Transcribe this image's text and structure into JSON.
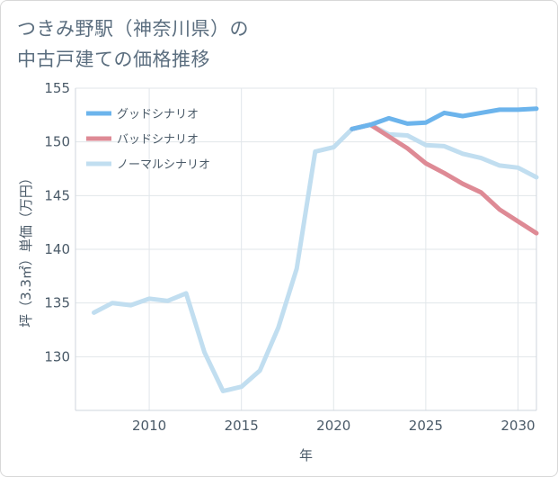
{
  "title_lines": [
    "つきみ野駅（神奈川県）の",
    "中古戸建ての価格推移"
  ],
  "chart_data": {
    "type": "line",
    "xlabel": "年",
    "ylabel": "坪（3.3㎡）単価（万円）",
    "xlim": [
      2006,
      2031
    ],
    "ylim": [
      125,
      155
    ],
    "xticks": [
      2010,
      2015,
      2020,
      2025,
      2030
    ],
    "yticks": [
      130,
      135,
      140,
      145,
      150,
      155
    ],
    "grid": true,
    "legend_position": "top-left",
    "series": [
      {
        "name": "グッドシナリオ",
        "color": "#6cb4ec",
        "x": [
          2021,
          2022,
          2023,
          2024,
          2025,
          2026,
          2027,
          2028,
          2029,
          2030,
          2031
        ],
        "y": [
          151.2,
          151.6,
          152.2,
          151.7,
          151.8,
          152.7,
          152.4,
          152.7,
          153.0,
          153.0,
          153.1
        ]
      },
      {
        "name": "バッドシナリオ",
        "color": "#de8a95",
        "x": [
          2021,
          2022,
          2023,
          2024,
          2025,
          2026,
          2027,
          2028,
          2029,
          2030,
          2031
        ],
        "y": [
          151.2,
          151.6,
          150.5,
          149.4,
          148.0,
          147.1,
          146.1,
          145.3,
          143.7,
          142.6,
          141.5
        ]
      },
      {
        "name": "ノーマルシナリオ",
        "color": "#c1def0",
        "x": [
          2007,
          2008,
          2009,
          2010,
          2011,
          2012,
          2013,
          2014,
          2015,
          2016,
          2017,
          2018,
          2019,
          2020,
          2021,
          2022,
          2023,
          2024,
          2025,
          2026,
          2027,
          2028,
          2029,
          2030,
          2031
        ],
        "y": [
          134.1,
          135.0,
          134.8,
          135.4,
          135.2,
          135.9,
          130.4,
          126.8,
          127.2,
          128.7,
          132.7,
          138.2,
          149.1,
          149.5,
          151.2,
          151.6,
          150.7,
          150.6,
          149.7,
          149.6,
          148.9,
          148.5,
          147.8,
          147.6,
          146.7
        ]
      }
    ]
  }
}
